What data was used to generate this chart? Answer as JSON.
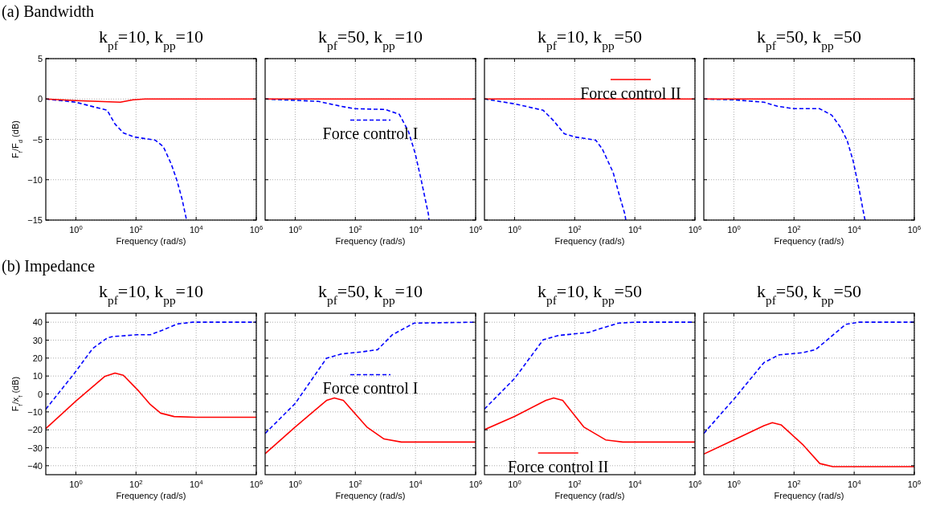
{
  "chart_data": [
    {
      "type": "line",
      "title": "k$_{pf}$=10, k$_{pp}$=10",
      "annotations": [
        "(a)   Bandwidth"
      ],
      "xlabel": "Frequency (rad/s)",
      "ylabel": "F$_{f}$/F$_{d}$ (dB)",
      "log": "x",
      "grid": true,
      "legend": false,
      "xlim": [
        0.1,
        1000000
      ],
      "ylim": [
        -15,
        5
      ],
      "xticks": [
        {
          "value": 1,
          "label": "10$^{0}$"
        },
        {
          "value": 100,
          "label": "10$^{2}$"
        },
        {
          "value": 10000,
          "label": "10$^{4}$"
        },
        {
          "value": 1000000,
          "label": "10$^{6}$"
        }
      ],
      "yticks": [
        -15,
        -10,
        -5,
        0,
        5
      ],
      "series": [
        {
          "color": "#0000ff",
          "line_style": "dashed",
          "x": [
            0.1,
            1,
            11,
            20,
            38,
            85,
            440,
            810,
            1500,
            2300,
            3400,
            4800
          ],
          "values": [
            0,
            -0.4,
            -1.4,
            -3.1,
            -4.2,
            -4.7,
            -5.1,
            -5.9,
            -8.1,
            -10.1,
            -12.4,
            -15
          ]
        },
        {
          "color": "#ff0000",
          "line_style": "solid",
          "x": [
            0.1,
            1,
            30,
            80,
            200,
            1000000
          ],
          "values": [
            0,
            -0.2,
            -0.4,
            -0.1,
            0,
            0
          ]
        }
      ]
    },
    {
      "type": "line",
      "title": "k$_{pf}$=50, k$_{pp}$=10",
      "xlabel": "Frequency (rad/s)",
      "log": "x",
      "grid": true,
      "legend": "center",
      "tick_labels": "x",
      "xlim": [
        0.1,
        1000000
      ],
      "ylim": [
        -15,
        5
      ],
      "xticks": [
        {
          "value": 1,
          "label": "10$^{0}$"
        },
        {
          "value": 100,
          "label": "10$^{2}$"
        },
        {
          "value": 10000,
          "label": "10$^{4}$"
        },
        {
          "value": 1000000,
          "label": "10$^{6}$"
        }
      ],
      "yticks": [
        -15,
        -10,
        -5,
        0,
        5
      ],
      "series": [
        {
          "name": "Force control I",
          "color": "#0000ff",
          "line_style": "dashed",
          "x": [
            0.1,
            6,
            33,
            93,
            1000,
            2900,
            5800,
            9700,
            15000,
            27000,
            28000
          ],
          "values": [
            0,
            -0.3,
            -0.9,
            -1.2,
            -1.3,
            -1.9,
            -4,
            -6.7,
            -9.8,
            -14.3,
            -15
          ]
        },
        {
          "color": "#ff0000",
          "line_style": "solid",
          "x": [
            0.1,
            1000000
          ],
          "values": [
            0,
            0
          ]
        }
      ]
    },
    {
      "type": "line",
      "title": "k$_{pf}$=10, k$_{pp}$=50",
      "xlabel": "Frequency (rad/s)",
      "log": "x",
      "grid": true,
      "legend": "top right",
      "tick_labels": "x",
      "xlim": [
        0.1,
        1000000
      ],
      "ylim": [
        -15,
        5
      ],
      "xticks": [
        {
          "value": 1,
          "label": "10$^{0}$"
        },
        {
          "value": 100,
          "label": "10$^{2}$"
        },
        {
          "value": 10000,
          "label": "10$^{4}$"
        },
        {
          "value": 1000000,
          "label": "10$^{6}$"
        }
      ],
      "yticks": [
        -15,
        -10,
        -5,
        0,
        5
      ],
      "series": [
        {
          "color": "#0000ff",
          "line_style": "dashed",
          "x": [
            0.1,
            1,
            9,
            20,
            45,
            100,
            500,
            830,
            1900,
            3100,
            4700,
            5000
          ],
          "values": [
            0,
            -0.6,
            -1.4,
            -2.7,
            -4.3,
            -4.7,
            -5.1,
            -6.2,
            -9.1,
            -12,
            -14.3,
            -15
          ]
        },
        {
          "name": "Force control II",
          "color": "#ff0000",
          "line_style": "solid",
          "x": [
            0.1,
            1000000
          ],
          "values": [
            0,
            0
          ]
        }
      ]
    },
    {
      "type": "line",
      "title": "k$_{pf}$=50, k$_{pp}$=50",
      "xlabel": "Frequency (rad/s)",
      "log": "x",
      "grid": true,
      "legend": false,
      "tick_labels": "x",
      "xlim": [
        0.1,
        1000000
      ],
      "ylim": [
        -15,
        5
      ],
      "xticks": [
        {
          "value": 1,
          "label": "10$^{0}$"
        },
        {
          "value": 100,
          "label": "10$^{2}$"
        },
        {
          "value": 10000,
          "label": "10$^{4}$"
        },
        {
          "value": 1000000,
          "label": "10$^{6}$"
        }
      ],
      "yticks": [
        -15,
        -10,
        -5,
        0,
        5
      ],
      "series": [
        {
          "color": "#0000ff",
          "line_style": "dashed",
          "x": [
            0.1,
            1,
            10,
            28,
            100,
            700,
            1800,
            3500,
            5800,
            9300,
            15000,
            21000,
            23000
          ],
          "values": [
            0,
            -0.1,
            -0.4,
            -0.9,
            -1.2,
            -1.2,
            -2,
            -3.5,
            -5.1,
            -7.7,
            -11.4,
            -14.3,
            -15
          ]
        },
        {
          "color": "#ff0000",
          "line_style": "solid",
          "x": [
            0.1,
            1000000
          ],
          "values": [
            0,
            0
          ]
        }
      ]
    },
    {
      "type": "line",
      "title": "k$_{pf}$=10, k$_{pp}$=10",
      "annotations": [
        "(b)   Impedance"
      ],
      "xlabel": "Frequency (rad/s)",
      "ylabel": "F$_{f}$/x$_{f}$ (dB)",
      "log": "x",
      "grid": true,
      "legend": false,
      "xlim": [
        0.1,
        1000000
      ],
      "ylim": [
        -45,
        45
      ],
      "xticks": [
        {
          "value": 1,
          "label": "10$^{0}$"
        },
        {
          "value": 100,
          "label": "10$^{2}$"
        },
        {
          "value": 10000,
          "label": "10$^{4}$"
        },
        {
          "value": 1000000,
          "label": "10$^{6}$"
        }
      ],
      "yticks": [
        -40,
        -30,
        -20,
        -10,
        0,
        10,
        20,
        30,
        40
      ],
      "series": [
        {
          "color": "#0000ff",
          "line_style": "dashed",
          "x": [
            0.1,
            1,
            3.6,
            11,
            17,
            105,
            300,
            810,
            2300,
            7800,
            1000000
          ],
          "values": [
            -8.5,
            12.6,
            25.3,
            31.2,
            32,
            33,
            33,
            35.7,
            39,
            40,
            40
          ]
        },
        {
          "color": "#ff0000",
          "line_style": "solid",
          "x": [
            0.1,
            1,
            9,
            20,
            38,
            125,
            300,
            660,
            1850,
            9500,
            1000000
          ],
          "values": [
            -19.3,
            -4,
            9.7,
            11.6,
            10.4,
            1.5,
            -5.9,
            -10.7,
            -12.6,
            -13,
            -13
          ]
        }
      ]
    },
    {
      "type": "line",
      "title": "k$_{pf}$=50, k$_{pp}$=10",
      "xlabel": "Frequency (rad/s)",
      "log": "x",
      "grid": true,
      "legend": "center",
      "tick_labels": "x",
      "xlim": [
        0.1,
        1000000
      ],
      "ylim": [
        -45,
        45
      ],
      "xticks": [
        {
          "value": 1,
          "label": "10$^{0}$"
        },
        {
          "value": 100,
          "label": "10$^{2}$"
        },
        {
          "value": 10000,
          "label": "10$^{4}$"
        },
        {
          "value": 1000000,
          "label": "10$^{6}$"
        }
      ],
      "yticks": [
        -40,
        -30,
        -20,
        -10,
        0,
        10,
        20,
        30,
        40
      ],
      "series": [
        {
          "name": "Force control I",
          "color": "#0000ff",
          "line_style": "dashed",
          "x": [
            0.1,
            1,
            11,
            34,
            170,
            550,
            1700,
            9000,
            1000000
          ],
          "values": [
            -22,
            -5.3,
            19.9,
            22.3,
            23.5,
            24.7,
            33,
            39.5,
            40
          ]
        },
        {
          "color": "#ff0000",
          "line_style": "solid",
          "x": [
            0.1,
            1,
            11,
            20,
            40,
            240,
            900,
            3400,
            1000000
          ],
          "values": [
            -33.3,
            -18.4,
            -3.6,
            -2.2,
            -3.6,
            -18.4,
            -25.1,
            -26.8,
            -26.8
          ]
        }
      ]
    },
    {
      "type": "line",
      "title": "k$_{pf}$=10, k$_{pp}$=50",
      "xlabel": "Frequency (rad/s)",
      "log": "x",
      "grid": true,
      "legend": "bottom",
      "tick_labels": "x",
      "xlim": [
        0.1,
        1000000
      ],
      "ylim": [
        -45,
        45
      ],
      "xticks": [
        {
          "value": 1,
          "label": "10$^{0}$"
        },
        {
          "value": 100,
          "label": "10$^{2}$"
        },
        {
          "value": 10000,
          "label": "10$^{4}$"
        },
        {
          "value": 1000000,
          "label": "10$^{6}$"
        }
      ],
      "yticks": [
        -40,
        -30,
        -20,
        -10,
        0,
        10,
        20,
        30,
        40
      ],
      "series": [
        {
          "color": "#0000ff",
          "line_style": "dashed",
          "x": [
            0.1,
            1,
            9,
            29,
            290,
            770,
            2900,
            10000,
            1000000
          ],
          "values": [
            -8.4,
            8.6,
            30.2,
            32.6,
            34.3,
            36.6,
            39.5,
            40,
            40
          ]
        },
        {
          "name": "Force control II",
          "color": "#ff0000",
          "line_style": "solid",
          "x": [
            0.1,
            1,
            11,
            20,
            40,
            200,
            1070,
            4000,
            1000000
          ],
          "values": [
            -19.9,
            -12.5,
            -3.6,
            -2.2,
            -3.6,
            -18.4,
            -25.6,
            -26.8,
            -26.8
          ]
        }
      ]
    },
    {
      "type": "line",
      "title": "k$_{pf}$=50, k$_{pp}$=50",
      "xlabel": "Frequency (rad/s)",
      "log": "x",
      "grid": true,
      "legend": false,
      "tick_labels": "x",
      "xlim": [
        0.1,
        1000000
      ],
      "ylim": [
        -45,
        45
      ],
      "xticks": [
        {
          "value": 1,
          "label": "10$^{0}$"
        },
        {
          "value": 100,
          "label": "10$^{2}$"
        },
        {
          "value": 10000,
          "label": "10$^{4}$"
        },
        {
          "value": 1000000,
          "label": "10$^{6}$"
        }
      ],
      "yticks": [
        -40,
        -30,
        -20,
        -10,
        0,
        10,
        20,
        30,
        40
      ],
      "series": [
        {
          "color": "#0000ff",
          "line_style": "dashed",
          "x": [
            0.1,
            1,
            10,
            32,
            190,
            520,
            1400,
            5200,
            14000,
            1000000
          ],
          "values": [
            -22,
            -2.9,
            17.5,
            21.8,
            23,
            24.7,
            30.7,
            38.8,
            40,
            40
          ]
        },
        {
          "color": "#ff0000",
          "line_style": "solid",
          "x": [
            0.1,
            1,
            10,
            19,
            37,
            190,
            720,
            1950,
            1000000
          ],
          "values": [
            -33.5,
            -25.6,
            -17.7,
            -16,
            -17.2,
            -28,
            -38.8,
            -40.5,
            -40.5
          ]
        }
      ]
    }
  ]
}
